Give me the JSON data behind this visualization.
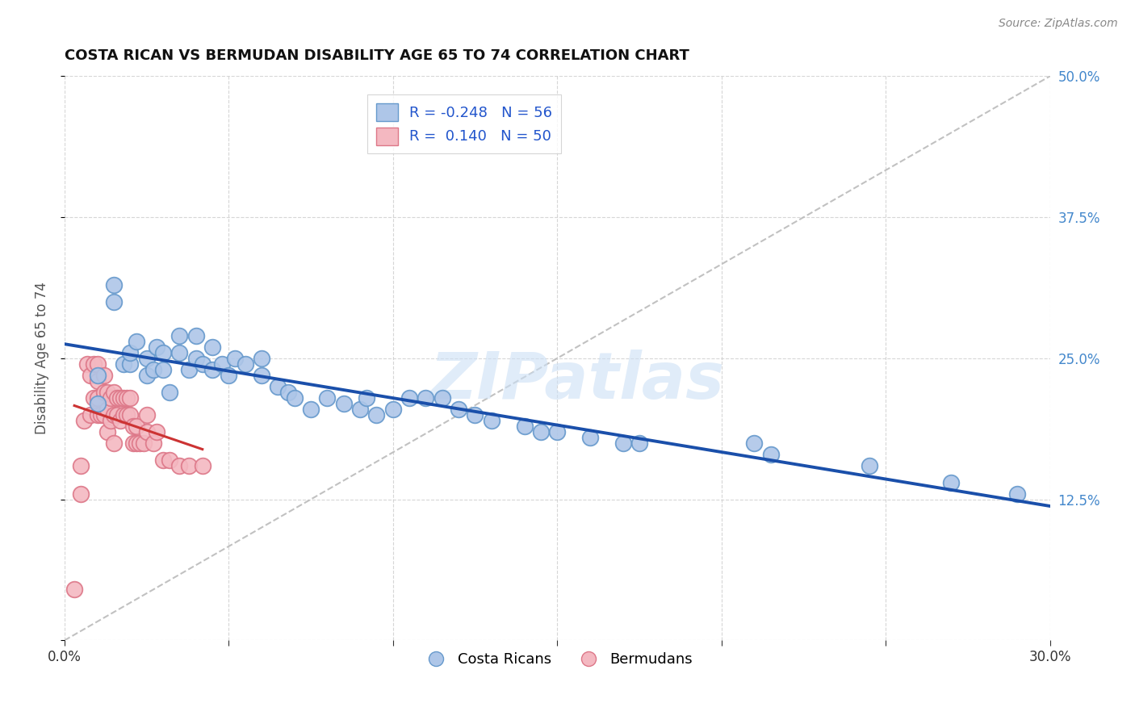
{
  "title": "COSTA RICAN VS BERMUDAN DISABILITY AGE 65 TO 74 CORRELATION CHART",
  "source": "Source: ZipAtlas.com",
  "ylabel": "Disability Age 65 to 74",
  "xlim": [
    0.0,
    0.3
  ],
  "ylim": [
    0.0,
    0.5
  ],
  "background_color": "#ffffff",
  "grid_color": "#cccccc",
  "blue_scatter_color": "#aec6e8",
  "blue_scatter_edge": "#6699cc",
  "pink_scatter_color": "#f4b8c1",
  "pink_scatter_edge": "#dd7788",
  "blue_line_color": "#1a4faa",
  "pink_line_color": "#cc3333",
  "ref_line_color": "#bbbbbb",
  "title_color": "#111111",
  "source_color": "#888888",
  "axis_label_color": "#555555",
  "right_tick_color": "#4488cc",
  "legend_label_color": "#2255cc",
  "watermark_text": "ZIPatlas",
  "watermark_color": "#cce0f5",
  "watermark_alpha": 0.6,
  "costa_rican_x": [
    0.01,
    0.01,
    0.015,
    0.015,
    0.018,
    0.02,
    0.02,
    0.022,
    0.025,
    0.025,
    0.027,
    0.028,
    0.03,
    0.03,
    0.032,
    0.035,
    0.035,
    0.038,
    0.04,
    0.04,
    0.042,
    0.045,
    0.045,
    0.048,
    0.05,
    0.052,
    0.055,
    0.06,
    0.06,
    0.065,
    0.068,
    0.07,
    0.075,
    0.08,
    0.085,
    0.09,
    0.092,
    0.095,
    0.1,
    0.105,
    0.11,
    0.115,
    0.12,
    0.125,
    0.13,
    0.14,
    0.145,
    0.15,
    0.16,
    0.17,
    0.175,
    0.21,
    0.215,
    0.245,
    0.27,
    0.29
  ],
  "costa_rican_y": [
    0.235,
    0.21,
    0.315,
    0.3,
    0.245,
    0.245,
    0.255,
    0.265,
    0.235,
    0.25,
    0.24,
    0.26,
    0.255,
    0.24,
    0.22,
    0.255,
    0.27,
    0.24,
    0.25,
    0.27,
    0.245,
    0.26,
    0.24,
    0.245,
    0.235,
    0.25,
    0.245,
    0.235,
    0.25,
    0.225,
    0.22,
    0.215,
    0.205,
    0.215,
    0.21,
    0.205,
    0.215,
    0.2,
    0.205,
    0.215,
    0.215,
    0.215,
    0.205,
    0.2,
    0.195,
    0.19,
    0.185,
    0.185,
    0.18,
    0.175,
    0.175,
    0.175,
    0.165,
    0.155,
    0.14,
    0.13
  ],
  "bermudan_x": [
    0.003,
    0.005,
    0.005,
    0.006,
    0.007,
    0.008,
    0.008,
    0.009,
    0.009,
    0.01,
    0.01,
    0.01,
    0.01,
    0.011,
    0.012,
    0.012,
    0.012,
    0.013,
    0.013,
    0.013,
    0.014,
    0.014,
    0.015,
    0.015,
    0.015,
    0.016,
    0.016,
    0.017,
    0.017,
    0.018,
    0.018,
    0.019,
    0.019,
    0.02,
    0.02,
    0.021,
    0.021,
    0.022,
    0.022,
    0.023,
    0.024,
    0.025,
    0.025,
    0.027,
    0.028,
    0.03,
    0.032,
    0.035,
    0.038,
    0.042
  ],
  "bermudan_y": [
    0.045,
    0.13,
    0.155,
    0.195,
    0.245,
    0.2,
    0.235,
    0.215,
    0.245,
    0.2,
    0.215,
    0.23,
    0.245,
    0.2,
    0.2,
    0.22,
    0.235,
    0.185,
    0.205,
    0.22,
    0.195,
    0.215,
    0.175,
    0.2,
    0.22,
    0.2,
    0.215,
    0.195,
    0.215,
    0.2,
    0.215,
    0.2,
    0.215,
    0.2,
    0.215,
    0.175,
    0.19,
    0.175,
    0.19,
    0.175,
    0.175,
    0.185,
    0.2,
    0.175,
    0.185,
    0.16,
    0.16,
    0.155,
    0.155,
    0.155
  ]
}
